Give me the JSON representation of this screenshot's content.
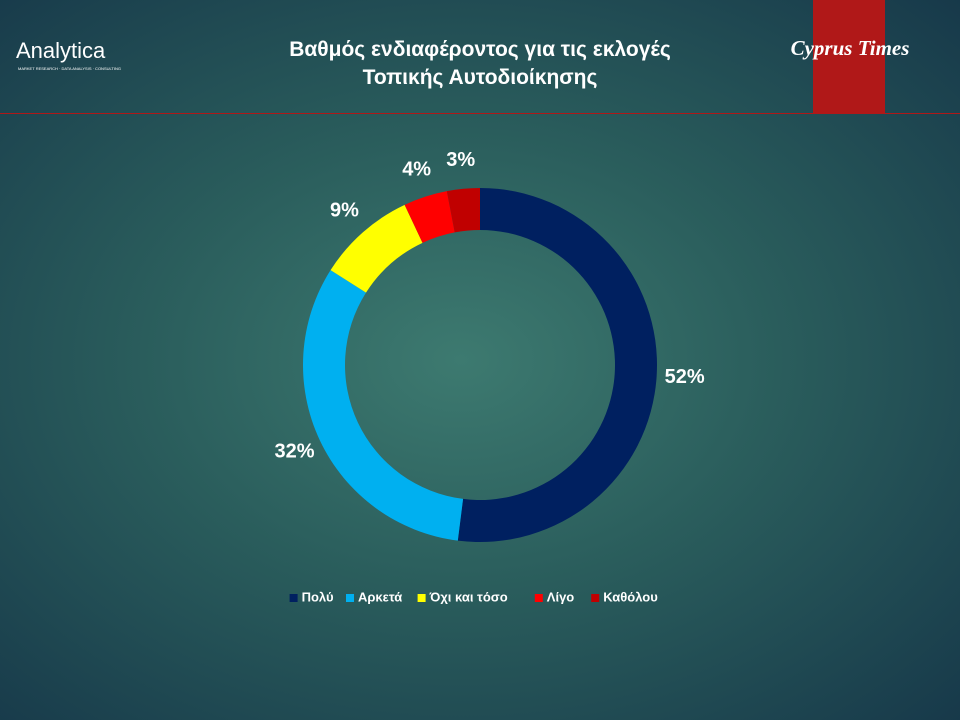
{
  "header": {
    "logo": "Analytica",
    "logo_tagline": "MARKET RESEARCH · DATA ANALYSIS · CONSULTING",
    "brand": "Cyprus Times"
  },
  "chart_data": {
    "type": "donut",
    "title": "Βαθμός ενδιαφέροντος για τις εκλογές\nΤοπικής Αυτοδιοίκησης",
    "categories": [
      "Πολύ",
      "Αρκετά",
      "Όχι και τόσο",
      "Λίγο",
      "Καθόλου"
    ],
    "values": [
      52,
      32,
      9,
      4,
      3
    ],
    "value_labels": [
      "52%",
      "32%",
      "9%",
      "4%",
      "3%"
    ],
    "colors": [
      "#002060",
      "#00b0f0",
      "#ffff00",
      "#ff0000",
      "#c00000"
    ],
    "legend": "bottom"
  }
}
